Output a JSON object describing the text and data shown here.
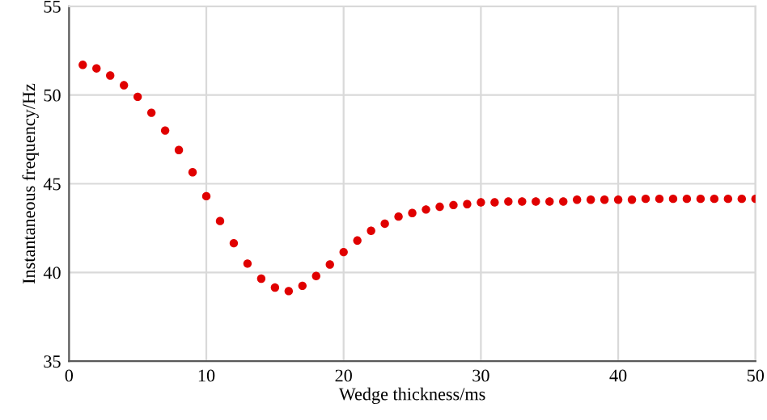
{
  "chart_data": {
    "type": "scatter",
    "xlabel": "Wedge thickness/ms",
    "ylabel": "Instantaneous frequency/Hz",
    "x": [
      1,
      2,
      3,
      4,
      5,
      6,
      7,
      8,
      9,
      10,
      11,
      12,
      13,
      14,
      15,
      16,
      17,
      18,
      19,
      20,
      21,
      22,
      23,
      24,
      25,
      26,
      27,
      28,
      29,
      30,
      31,
      32,
      33,
      34,
      35,
      36,
      37,
      38,
      39,
      40,
      41,
      42,
      43,
      44,
      45,
      46,
      47,
      48,
      49,
      50
    ],
    "series": [
      {
        "color": "#e00000",
        "values": [
          51.7,
          51.5,
          51.1,
          50.55,
          49.9,
          49.0,
          48.0,
          46.9,
          45.65,
          44.3,
          42.9,
          41.65,
          40.5,
          39.65,
          39.15,
          38.95,
          39.25,
          39.8,
          40.45,
          41.15,
          41.8,
          42.35,
          42.75,
          43.15,
          43.35,
          43.55,
          43.7,
          43.8,
          43.85,
          43.95,
          43.95,
          44.0,
          44.0,
          44.0,
          44.0,
          44.0,
          44.1,
          44.1,
          44.1,
          44.1,
          44.1,
          44.15,
          44.15,
          44.15,
          44.15,
          44.15,
          44.15,
          44.15,
          44.15,
          44.15
        ]
      }
    ],
    "xlim": [
      0,
      50
    ],
    "xticks": [
      0,
      10,
      20,
      30,
      40,
      50
    ],
    "ylim": [
      35,
      55
    ],
    "yticks": [
      35,
      40,
      45,
      50,
      55
    ],
    "grid": true,
    "marker": "circle"
  }
}
